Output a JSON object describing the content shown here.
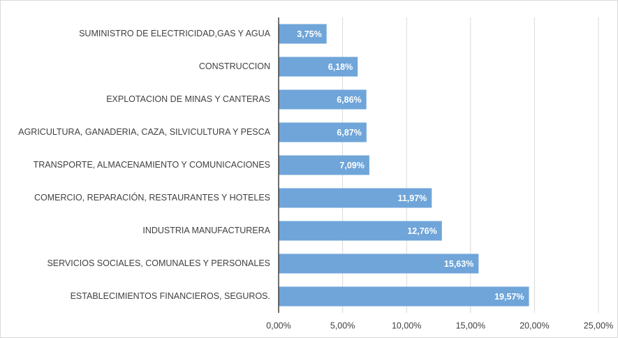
{
  "chart_data": {
    "type": "bar",
    "orientation": "horizontal",
    "categories": [
      "SUMINISTRO DE ELECTRICIDAD,GAS Y AGUA",
      "CONSTRUCCION",
      "EXPLOTACION DE MINAS Y CANTERAS",
      "AGRICULTURA, GANADERIA, CAZA, SILVICULTURA Y PESCA",
      "TRANSPORTE, ALMACENAMIENTO Y COMUNICACIONES",
      "COMERCIO, REPARACIÓN, RESTAURANTES Y HOTELES",
      "INDUSTRIA MANUFACTURERA",
      "SERVICIOS SOCIALES, COMUNALES Y PERSONALES",
      "ESTABLECIMIENTOS FINANCIEROS, SEGUROS."
    ],
    "values": [
      3.75,
      6.18,
      6.86,
      6.87,
      7.09,
      11.97,
      12.76,
      15.63,
      19.57
    ],
    "value_labels": [
      "3,75%",
      "6,18%",
      "6,86%",
      "6,87%",
      "7,09%",
      "11,97%",
      "12,76%",
      "15,63%",
      "19,57%"
    ],
    "color": "#6fa5d9",
    "xlim": [
      0,
      25
    ],
    "xticks": [
      {
        "value": 0,
        "label": "0,00%"
      },
      {
        "value": 5,
        "label": "5,00%"
      },
      {
        "value": 10,
        "label": "10,00%"
      },
      {
        "value": 15,
        "label": "15,00%"
      },
      {
        "value": 20,
        "label": "20,00%"
      },
      {
        "value": 25,
        "label": "25,00%"
      }
    ],
    "grid": true
  }
}
